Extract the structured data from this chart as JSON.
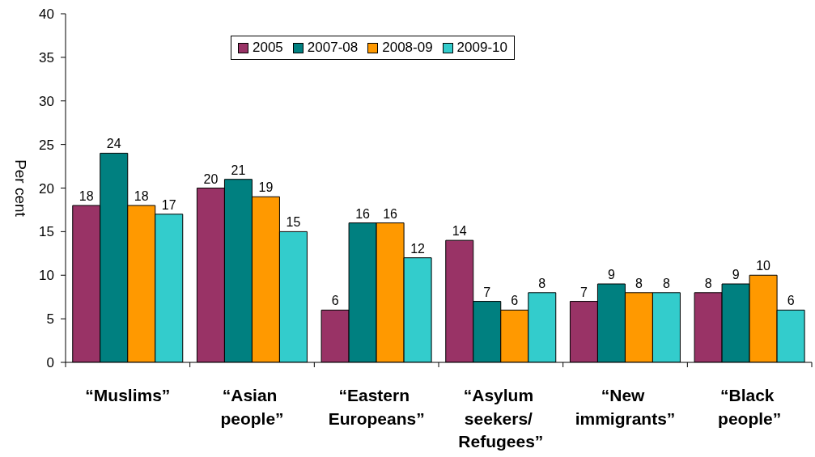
{
  "chart_data": {
    "type": "bar",
    "ylabel": "Per cent",
    "categories": [
      "“Muslims”",
      "“Asian people”",
      "“Eastern Europeans”",
      "“Asylum seekers/ Refugees”",
      "“New immigrants”",
      "“Black people”"
    ],
    "series": [
      {
        "name": "2005",
        "color": "#993366",
        "values": [
          18,
          20,
          6,
          14,
          7,
          8
        ]
      },
      {
        "name": "2007-08",
        "color": "#008080",
        "values": [
          24,
          21,
          16,
          7,
          9,
          9
        ]
      },
      {
        "name": "2008-09",
        "color": "#ff9900",
        "values": [
          18,
          19,
          16,
          6,
          8,
          10
        ]
      },
      {
        "name": "2009-10",
        "color": "#33cccc",
        "values": [
          17,
          15,
          12,
          8,
          8,
          6
        ]
      }
    ],
    "ylim": [
      0,
      40
    ],
    "yticks": [
      0,
      5,
      10,
      15,
      20,
      25,
      30,
      35,
      40
    ],
    "legend": "top",
    "data_labels": true
  }
}
